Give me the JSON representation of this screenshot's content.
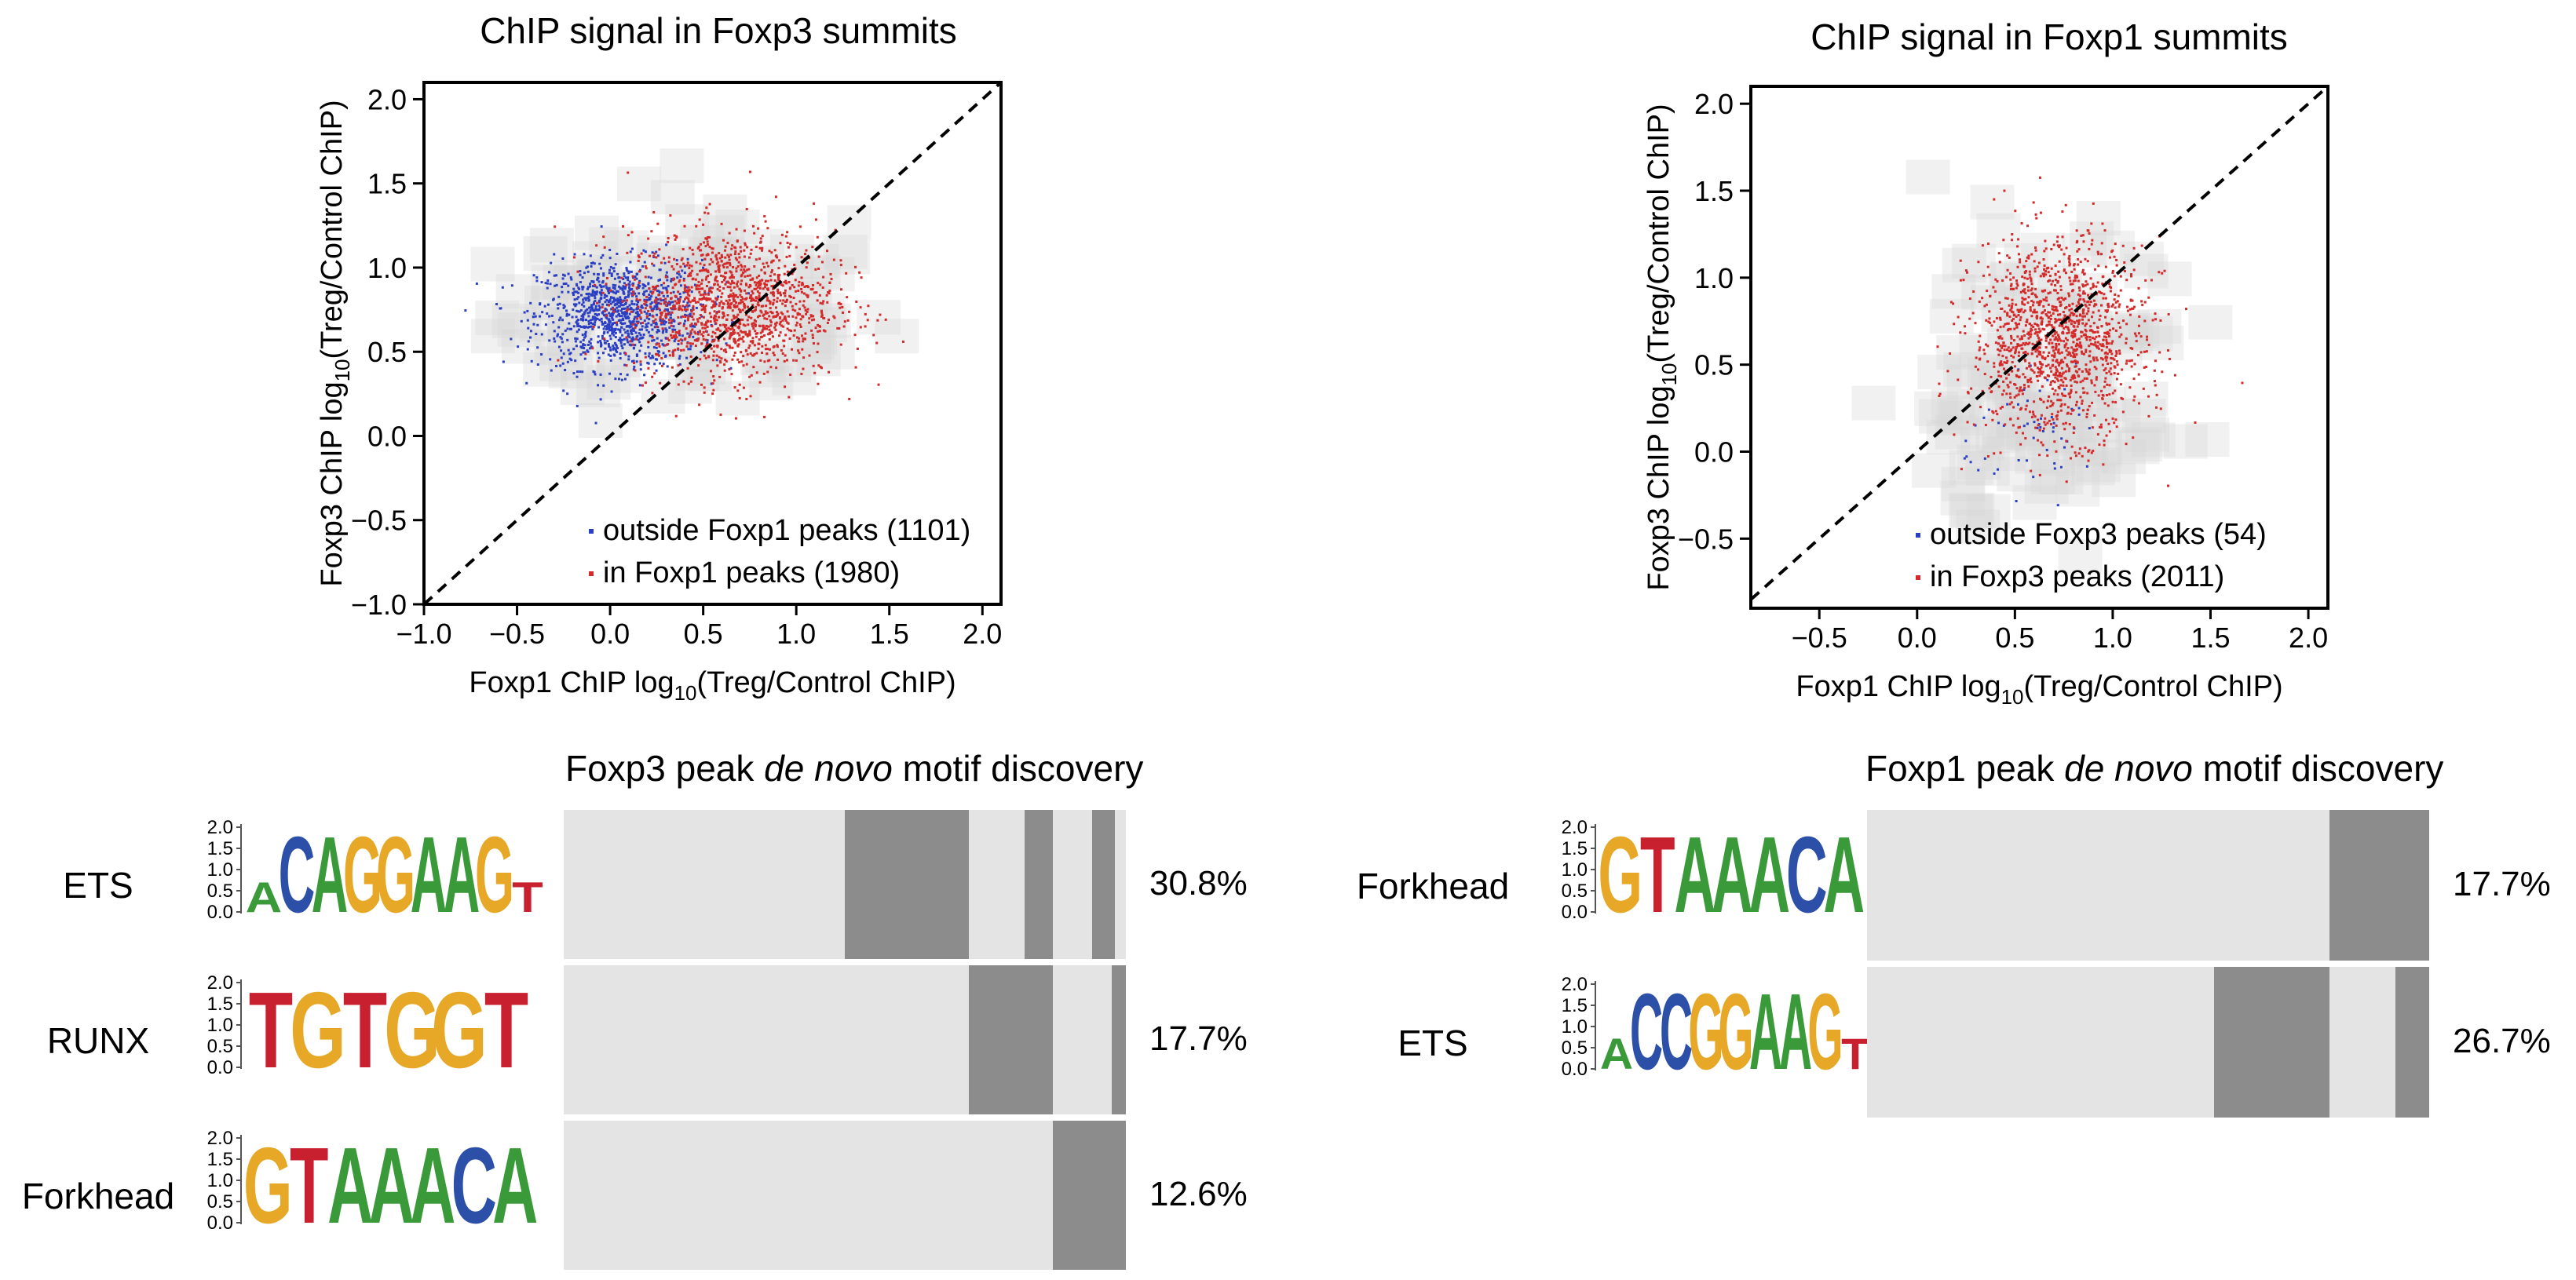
{
  "scatter_panels": [
    {
      "title": "ChIP signal in Foxp3 summits",
      "xlabel": {
        "pre": "Foxp1 ChIP log",
        "sub": "10",
        "post": "(Treg/Control ChIP)"
      },
      "ylabel": {
        "pre": "Foxp3 ChIP log",
        "sub": "10",
        "post": "(Treg/Control ChIP)"
      },
      "legend": [
        "outside Foxp1 peaks (1101)",
        "in Foxp1 peaks (1980)"
      ]
    },
    {
      "title": "ChIP signal in Foxp1 summits",
      "xlabel": {
        "pre": "Foxp1 ChIP log",
        "sub": "10",
        "post": "(Treg/Control ChIP)"
      },
      "ylabel": {
        "pre": "Foxp3 ChIP log",
        "sub": "10",
        "post": "(Treg/Control ChIP)"
      },
      "legend": [
        "outside Foxp3 peaks (54)",
        "in Foxp3 peaks (2011)"
      ]
    }
  ],
  "motif_panels": [
    {
      "title": {
        "pre": "Foxp3 peak ",
        "em": "de novo",
        "post": " motif discovery"
      },
      "rows": [
        {
          "name": "ETS",
          "logo": "ACAGGAAGT",
          "percent": "30.8%"
        },
        {
          "name": "RUNX",
          "logo": "TGTGGT",
          "percent": "17.7%"
        },
        {
          "name": "Forkhead",
          "logo": "GTAAACA",
          "percent": "12.6%"
        }
      ]
    },
    {
      "title": {
        "pre": "Foxp1 peak ",
        "em": "de novo",
        "post": " motif discovery"
      },
      "rows": [
        {
          "name": "Forkhead",
          "logo": "GTAAACA",
          "percent": "17.7%"
        },
        {
          "name": "ETS",
          "logo": "ACCGGAAGT",
          "percent": "26.7%"
        }
      ]
    }
  ],
  "logo_axis_ticks": [
    "2.0",
    "1.5",
    "1.0",
    "0.5",
    "0.0"
  ],
  "colors": {
    "blue": "#2b3fc4",
    "red": "#d42a2a",
    "A": "#3a9a3a",
    "C": "#2c4fa8",
    "G": "#e6a826",
    "T": "#c8202e",
    "bar_light": "#e4e4e4",
    "bar_dark": "#8c8c8c"
  },
  "chart_data": [
    {
      "type": "scatter",
      "title": "ChIP signal in Foxp3 summits",
      "xlabel": "Foxp1 ChIP log10(Treg/Control ChIP)",
      "ylabel": "Foxp3 ChIP log10(Treg/Control ChIP)",
      "xlim": [
        -1.0,
        2.1
      ],
      "ylim": [
        -1.0,
        2.1
      ],
      "xticks": [
        "−1.0",
        "−0.5",
        "0.0",
        "0.5",
        "1.0",
        "1.5",
        "2.0"
      ],
      "yticks": [
        "−1.0",
        "−0.5",
        "0.0",
        "0.5",
        "1.0",
        "1.5",
        "2.0"
      ],
      "xtick_values": [
        -1.0,
        -0.5,
        0.0,
        0.5,
        1.0,
        1.5,
        2.0
      ],
      "ytick_values": [
        -1.0,
        -0.5,
        0.0,
        0.5,
        1.0,
        1.5,
        2.0
      ],
      "diagonal": true,
      "legend_position": "bottom-right",
      "series": [
        {
          "name": "outside Foxp1 peaks (1101)",
          "color": "#2b3fc4",
          "n": 1101,
          "center": [
            0.05,
            0.72
          ],
          "spread": [
            0.22,
            0.16
          ]
        },
        {
          "name": "in Foxp1 peaks (1980)",
          "color": "#d42a2a",
          "n": 1980,
          "center": [
            0.65,
            0.78
          ],
          "spread": [
            0.28,
            0.22
          ]
        }
      ]
    },
    {
      "type": "scatter",
      "title": "ChIP signal in Foxp1 summits",
      "xlabel": "Foxp1 ChIP log10(Treg/Control ChIP)",
      "ylabel": "Foxp3 ChIP log10(Treg/Control ChIP)",
      "xlim": [
        -0.85,
        2.1
      ],
      "ylim": [
        -0.9,
        2.1
      ],
      "xticks": [
        "−0.5",
        "0.0",
        "0.5",
        "1.0",
        "1.5",
        "2.0"
      ],
      "yticks": [
        "−0.5",
        "0.0",
        "0.5",
        "1.0",
        "1.5",
        "2.0"
      ],
      "xtick_values": [
        -0.5,
        0.0,
        0.5,
        1.0,
        1.5,
        2.0
      ],
      "ytick_values": [
        -0.5,
        0.0,
        0.5,
        1.0,
        1.5,
        2.0
      ],
      "diagonal": true,
      "legend_position": "bottom-right",
      "series": [
        {
          "name": "outside Foxp3 peaks (54)",
          "color": "#2b3fc4",
          "n": 54,
          "center": [
            0.65,
            0.1
          ],
          "spread": [
            0.2,
            0.15
          ]
        },
        {
          "name": "in Foxp3 peaks (2011)",
          "color": "#d42a2a",
          "n": 2011,
          "center": [
            0.72,
            0.65
          ],
          "spread": [
            0.22,
            0.28
          ]
        }
      ]
    },
    {
      "type": "table",
      "title": "Foxp3 peak de novo motif discovery",
      "rows": [
        {
          "motif": "ETS",
          "percent": 30.8,
          "dark_segments": [
            [
              0.5,
              0.72
            ],
            [
              0.82,
              0.87
            ],
            [
              0.94,
              0.98
            ]
          ]
        },
        {
          "motif": "RUNX",
          "percent": 17.7,
          "dark_segments": [
            [
              0.72,
              0.87
            ],
            [
              0.975,
              1.0
            ]
          ]
        },
        {
          "motif": "Forkhead",
          "percent": 12.6,
          "dark_segments": [
            [
              0.87,
              1.0
            ]
          ]
        }
      ]
    },
    {
      "type": "table",
      "title": "Foxp1 peak de novo motif discovery",
      "rows": [
        {
          "motif": "Forkhead",
          "percent": 17.7,
          "dark_segments": [
            [
              0.823,
              1.0
            ]
          ]
        },
        {
          "motif": "ETS",
          "percent": 26.7,
          "dark_segments": [
            [
              0.617,
              0.823
            ],
            [
              0.94,
              1.0
            ]
          ]
        }
      ]
    }
  ]
}
